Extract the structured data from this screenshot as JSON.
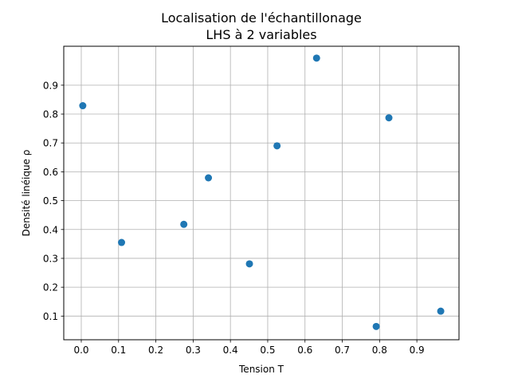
{
  "chart_data": {
    "type": "scatter",
    "title": [
      "Localisation de l'échantillonage",
      "LHS à 2 variables"
    ],
    "xlabel": "Tension T",
    "ylabel": "Densité linéique ρ",
    "xlim": [
      -0.047,
      1.013
    ],
    "ylim": [
      0.018,
      1.035
    ],
    "xticks": [
      0.0,
      0.1,
      0.2,
      0.3,
      0.4,
      0.5,
      0.6,
      0.7,
      0.8,
      0.9
    ],
    "xtick_labels": [
      "0.0",
      "0.1",
      "0.2",
      "0.3",
      "0.4",
      "0.5",
      "0.6",
      "0.7",
      "0.8",
      "0.9"
    ],
    "yticks": [
      0.1,
      0.2,
      0.3,
      0.4,
      0.5,
      0.6,
      0.7,
      0.8,
      0.9
    ],
    "ytick_labels": [
      "0.1",
      "0.2",
      "0.3",
      "0.4",
      "0.5",
      "0.6",
      "0.7",
      "0.8",
      "0.9"
    ],
    "grid": true,
    "marker_color": "#1f77b4",
    "points": [
      {
        "x": 0.004,
        "y": 0.829
      },
      {
        "x": 0.108,
        "y": 0.355
      },
      {
        "x": 0.275,
        "y": 0.418
      },
      {
        "x": 0.341,
        "y": 0.579
      },
      {
        "x": 0.451,
        "y": 0.281
      },
      {
        "x": 0.525,
        "y": 0.69
      },
      {
        "x": 0.631,
        "y": 0.994
      },
      {
        "x": 0.791,
        "y": 0.064
      },
      {
        "x": 0.825,
        "y": 0.787
      },
      {
        "x": 0.964,
        "y": 0.117
      }
    ]
  }
}
